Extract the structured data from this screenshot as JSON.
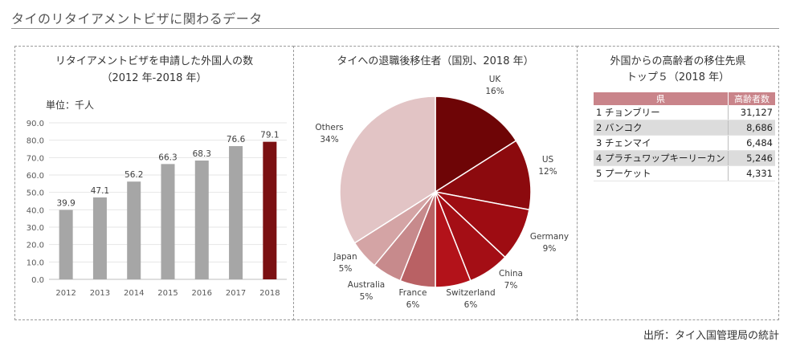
{
  "page": {
    "title": "タイのリタイアメントビザに関わるデータ",
    "source": "出所：タイ入国管理局の統計"
  },
  "bar_panel": {
    "title_line1": "リタイアメントビザを申請した外国人の数",
    "title_line2": "（2012 年-2018 年）",
    "unit": "単位：千人"
  },
  "pie_panel": {
    "title": "タイへの退職後移住者（国別、2018 年）"
  },
  "table_panel": {
    "title_line1": "外国からの高齢者の移住先県",
    "title_line2": "トップ５（2018 年）",
    "header_prefecture": "県",
    "header_count": "高齢者数",
    "rows": [
      {
        "label": "1 チョンブリー",
        "value": "31,127"
      },
      {
        "label": "2 バンコク",
        "value": "8,686"
      },
      {
        "label": "3 チェンマイ",
        "value": "6,484"
      },
      {
        "label": "4 プラチュワップキーリーカン",
        "value": "5,246"
      },
      {
        "label": "5 プーケット",
        "value": "4,331"
      }
    ]
  },
  "colors": {
    "bar_default": "#a6a6a6",
    "bar_highlight": "#7b1012",
    "table_header": "#c9848a"
  },
  "chart_data": [
    {
      "type": "bar",
      "title": "リタイアメントビザを申請した外国人の数（2012 年-2018 年）",
      "ylabel": "単位：千人",
      "categories": [
        "2012",
        "2013",
        "2014",
        "2015",
        "2016",
        "2017",
        "2018"
      ],
      "values": [
        39.9,
        47.1,
        56.2,
        66.3,
        68.3,
        76.6,
        79.1
      ],
      "data_labels": [
        "39.9",
        "47.1",
        "56.2",
        "66.3",
        "68.3",
        "76.6",
        "79.1"
      ],
      "yticks": [
        "0.0",
        "10.0",
        "20.0",
        "30.0",
        "40.0",
        "50.0",
        "60.0",
        "70.0",
        "80.0",
        "90.0"
      ],
      "ylim": [
        0,
        90
      ],
      "highlight_index": 6,
      "grid": true
    },
    {
      "type": "pie",
      "title": "タイへの退職後移住者（国別、2018 年）",
      "slices": [
        {
          "label": "UK",
          "pct_label": "16%",
          "value": 16,
          "color": "#6e0506"
        },
        {
          "label": "US",
          "pct_label": "12%",
          "value": 12,
          "color": "#8c0a0e"
        },
        {
          "label": "Germany",
          "pct_label": "9%",
          "value": 9,
          "color": "#9e0c12"
        },
        {
          "label": "China",
          "pct_label": "7%",
          "value": 7,
          "color": "#a40e15"
        },
        {
          "label": "Switzerland",
          "pct_label": "6%",
          "value": 6,
          "color": "#b3121a"
        },
        {
          "label": "France",
          "pct_label": "6%",
          "value": 6,
          "color": "#b96164"
        },
        {
          "label": "Australia",
          "pct_label": "5%",
          "value": 5,
          "color": "#c78a8c"
        },
        {
          "label": "Japan",
          "pct_label": "5%",
          "value": 5,
          "color": "#d4a4a5"
        },
        {
          "label": "Others",
          "pct_label": "34%",
          "value": 34,
          "color": "#e2c4c5"
        }
      ]
    }
  ]
}
